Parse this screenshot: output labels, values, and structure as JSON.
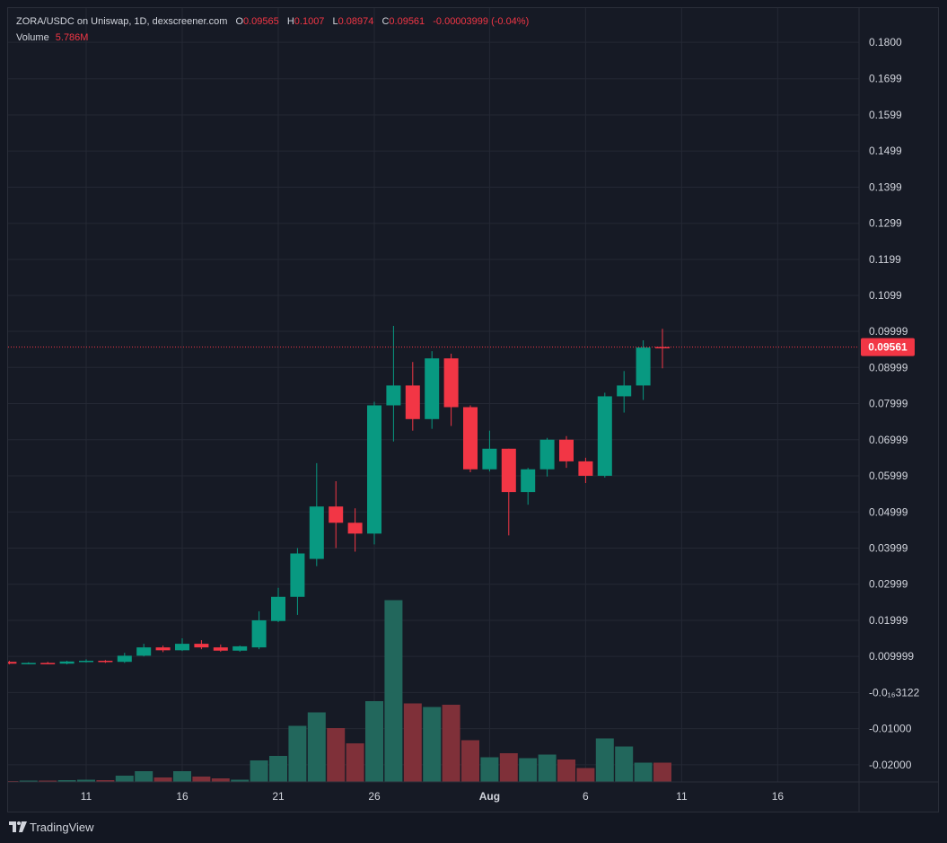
{
  "legend": {
    "pair": "ZORA/USDC on Uniswap, 1D, dexscreener.com",
    "o_label": "O",
    "o_value": "0.09565",
    "h_label": "H",
    "h_value": "0.1007",
    "l_label": "L",
    "l_value": "0.08974",
    "c_label": "C",
    "c_value": "0.09561",
    "change": "-0.00003999 (-0.04%)",
    "volume_label": "Volume",
    "volume_value": "5.786M"
  },
  "footer": {
    "brand": "TradingView"
  },
  "colors": {
    "background": "#161a25",
    "up": "#089981",
    "down": "#f23645",
    "up_volume": "#22675c",
    "down_volume": "#7f3039",
    "grid": "#242834",
    "text": "#d1d4dc",
    "price_tag": "#f23645"
  },
  "chart_data": {
    "type": "candlestick",
    "y_ticks": [
      {
        "value": 0.18,
        "label": "0.1800"
      },
      {
        "value": 0.1699,
        "label": "0.1699"
      },
      {
        "value": 0.1599,
        "label": "0.1599"
      },
      {
        "value": 0.1499,
        "label": "0.1499"
      },
      {
        "value": 0.1399,
        "label": "0.1399"
      },
      {
        "value": 0.1299,
        "label": "0.1299"
      },
      {
        "value": 0.1199,
        "label": "0.1199"
      },
      {
        "value": 0.1099,
        "label": "0.1099"
      },
      {
        "value": 0.09999,
        "label": "0.09999"
      },
      {
        "value": 0.08999,
        "label": "0.08999"
      },
      {
        "value": 0.07999,
        "label": "0.07999"
      },
      {
        "value": 0.06999,
        "label": "0.06999"
      },
      {
        "value": 0.05999,
        "label": "0.05999"
      },
      {
        "value": 0.04999,
        "label": "0.04999"
      },
      {
        "value": 0.03999,
        "label": "0.03999"
      },
      {
        "value": 0.02999,
        "label": "0.02999"
      },
      {
        "value": 0.01999,
        "label": "0.01999"
      },
      {
        "value": 0.009999,
        "label": "0.009999"
      },
      {
        "value": -1.3122e-06,
        "label": "-0.0₁₆3122"
      },
      {
        "value": -0.01,
        "label": "-0.01000"
      },
      {
        "value": -0.02,
        "label": "-0.02000"
      }
    ],
    "x_ticks": [
      {
        "day": 11,
        "label": "11"
      },
      {
        "day": 16,
        "label": "16"
      },
      {
        "day": 21,
        "label": "21"
      },
      {
        "day": 26,
        "label": "26"
      },
      {
        "day": 32,
        "label": "Aug",
        "bold": true
      },
      {
        "day": 37,
        "label": "6"
      },
      {
        "day": 42,
        "label": "11"
      },
      {
        "day": 47,
        "label": "16"
      }
    ],
    "last_price": {
      "value": 0.09561,
      "label": "0.09561"
    },
    "candles": [
      {
        "day": 7,
        "o": 0.0085,
        "h": 0.0088,
        "l": 0.0078,
        "c": 0.008,
        "v": 0.02
      },
      {
        "day": 8,
        "o": 0.008,
        "h": 0.0084,
        "l": 0.0078,
        "c": 0.0082,
        "v": 0.03
      },
      {
        "day": 9,
        "o": 0.0082,
        "h": 0.0085,
        "l": 0.0079,
        "c": 0.0081,
        "v": 0.03
      },
      {
        "day": 10,
        "o": 0.008,
        "h": 0.0088,
        "l": 0.0078,
        "c": 0.0086,
        "v": 0.04
      },
      {
        "day": 11,
        "o": 0.0086,
        "h": 0.0092,
        "l": 0.0083,
        "c": 0.0088,
        "v": 0.05
      },
      {
        "day": 12,
        "o": 0.0088,
        "h": 0.009,
        "l": 0.0082,
        "c": 0.0085,
        "v": 0.04
      },
      {
        "day": 13,
        "o": 0.0085,
        "h": 0.011,
        "l": 0.0082,
        "c": 0.0102,
        "v": 0.14
      },
      {
        "day": 14,
        "o": 0.0102,
        "h": 0.0135,
        "l": 0.01,
        "c": 0.0125,
        "v": 0.24
      },
      {
        "day": 15,
        "o": 0.0125,
        "h": 0.013,
        "l": 0.0112,
        "c": 0.0117,
        "v": 0.1
      },
      {
        "day": 16,
        "o": 0.0117,
        "h": 0.015,
        "l": 0.0115,
        "c": 0.0135,
        "v": 0.24
      },
      {
        "day": 17,
        "o": 0.0135,
        "h": 0.0145,
        "l": 0.012,
        "c": 0.0125,
        "v": 0.12
      },
      {
        "day": 18,
        "o": 0.0125,
        "h": 0.0133,
        "l": 0.0113,
        "c": 0.0116,
        "v": 0.08
      },
      {
        "day": 19,
        "o": 0.0116,
        "h": 0.013,
        "l": 0.0113,
        "c": 0.0128,
        "v": 0.05
      },
      {
        "day": 20,
        "o": 0.0125,
        "h": 0.0225,
        "l": 0.012,
        "c": 0.02,
        "v": 0.48
      },
      {
        "day": 21,
        "o": 0.0198,
        "h": 0.029,
        "l": 0.0195,
        "c": 0.0265,
        "v": 0.58
      },
      {
        "day": 22,
        "o": 0.0265,
        "h": 0.04,
        "l": 0.0215,
        "c": 0.0385,
        "v": 1.25
      },
      {
        "day": 23,
        "o": 0.037,
        "h": 0.0635,
        "l": 0.035,
        "c": 0.0515,
        "v": 1.55
      },
      {
        "day": 24,
        "o": 0.0515,
        "h": 0.0585,
        "l": 0.04,
        "c": 0.047,
        "v": 1.2
      },
      {
        "day": 25,
        "o": 0.047,
        "h": 0.051,
        "l": 0.039,
        "c": 0.044,
        "v": 0.86
      },
      {
        "day": 26,
        "o": 0.044,
        "h": 0.0805,
        "l": 0.041,
        "c": 0.0795,
        "v": 1.8
      },
      {
        "day": 27,
        "o": 0.0795,
        "h": 0.1015,
        "l": 0.0695,
        "c": 0.085,
        "v": 4.05
      },
      {
        "day": 28,
        "o": 0.085,
        "h": 0.0915,
        "l": 0.0725,
        "c": 0.0757,
        "v": 1.75
      },
      {
        "day": 29,
        "o": 0.0757,
        "h": 0.0945,
        "l": 0.073,
        "c": 0.0925,
        "v": 1.67
      },
      {
        "day": 30,
        "o": 0.0925,
        "h": 0.0938,
        "l": 0.0738,
        "c": 0.079,
        "v": 1.72
      },
      {
        "day": 31,
        "o": 0.079,
        "h": 0.0795,
        "l": 0.061,
        "c": 0.0618,
        "v": 0.93
      },
      {
        "day": 32,
        "o": 0.0618,
        "h": 0.0725,
        "l": 0.0612,
        "c": 0.0675,
        "v": 0.55
      },
      {
        "day": 33,
        "o": 0.0675,
        "h": 0.0675,
        "l": 0.0435,
        "c": 0.0555,
        "v": 0.64
      },
      {
        "day": 34,
        "o": 0.0555,
        "h": 0.0622,
        "l": 0.052,
        "c": 0.0618,
        "v": 0.53
      },
      {
        "day": 35,
        "o": 0.0618,
        "h": 0.0705,
        "l": 0.0598,
        "c": 0.07,
        "v": 0.61
      },
      {
        "day": 36,
        "o": 0.07,
        "h": 0.071,
        "l": 0.0622,
        "c": 0.064,
        "v": 0.5
      },
      {
        "day": 37,
        "o": 0.064,
        "h": 0.065,
        "l": 0.058,
        "c": 0.06,
        "v": 0.31
      },
      {
        "day": 38,
        "o": 0.06,
        "h": 0.083,
        "l": 0.0595,
        "c": 0.082,
        "v": 0.97
      },
      {
        "day": 39,
        "o": 0.082,
        "h": 0.089,
        "l": 0.0775,
        "c": 0.085,
        "v": 0.79
      },
      {
        "day": 40,
        "o": 0.085,
        "h": 0.0975,
        "l": 0.081,
        "c": 0.0955,
        "v": 0.43
      },
      {
        "day": 41,
        "o": 0.09565,
        "h": 0.1007,
        "l": 0.08974,
        "c": 0.09561,
        "v": 0.43
      }
    ]
  }
}
